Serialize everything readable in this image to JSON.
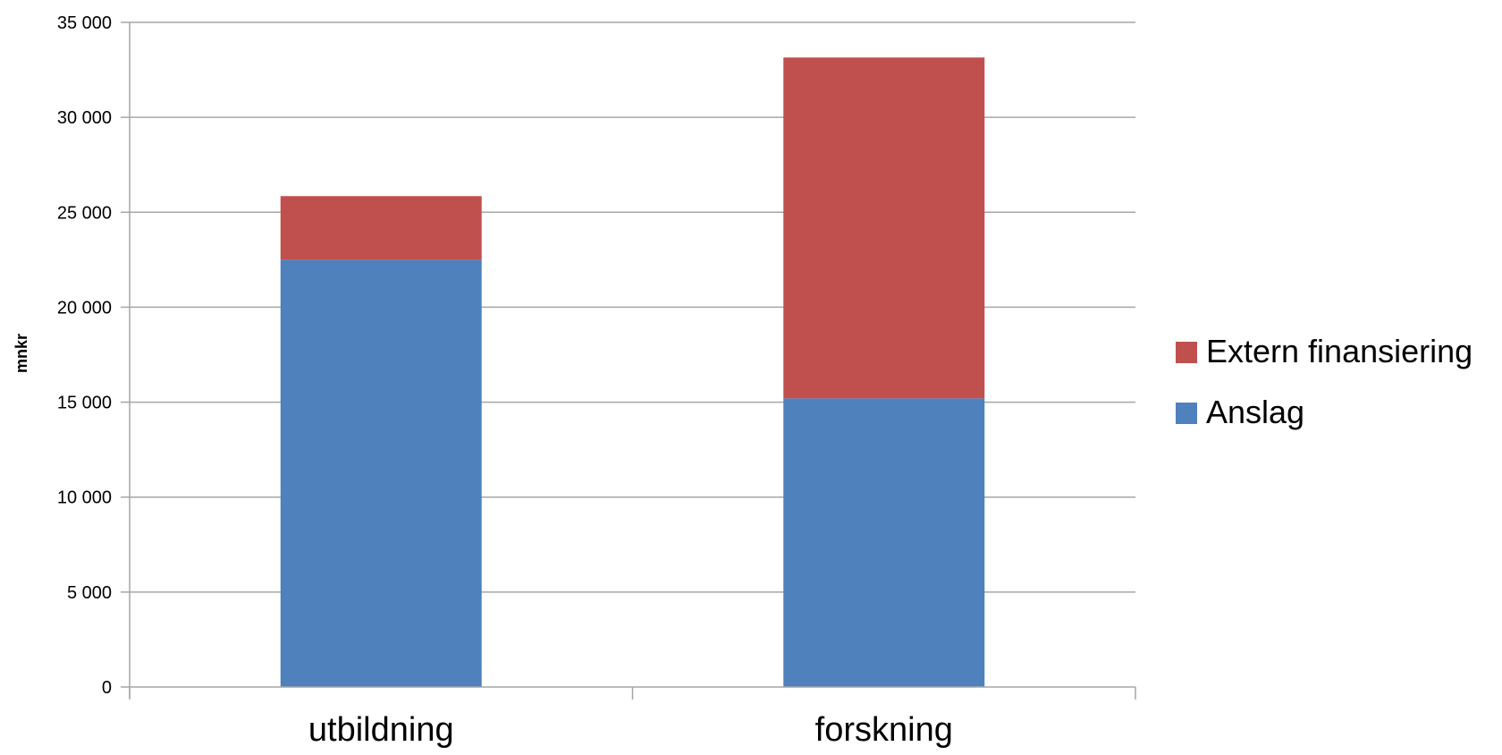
{
  "chart_data": {
    "type": "bar",
    "stacked": true,
    "title": "",
    "xlabel": "",
    "ylabel": "mnkr",
    "ylim": [
      0,
      35000
    ],
    "yticks": [
      0,
      5000,
      10000,
      15000,
      20000,
      25000,
      30000,
      35000
    ],
    "ytick_labels": [
      "0",
      "5 000",
      "10 000",
      "15 000",
      "20 000",
      "25 000",
      "30 000",
      "35 000"
    ],
    "categories": [
      "utbildning",
      "forskning"
    ],
    "series": [
      {
        "name": "Anslag",
        "values": [
          22500,
          15200
        ],
        "color": "#4F81BD"
      },
      {
        "name": "Extern finansiering",
        "values": [
          3350,
          17950
        ],
        "color": "#C0504D"
      }
    ],
    "legend_order": [
      "Extern finansiering",
      "Anslag"
    ],
    "legend_position": "right",
    "grid": true,
    "grid_color": "#A6A6A6"
  }
}
